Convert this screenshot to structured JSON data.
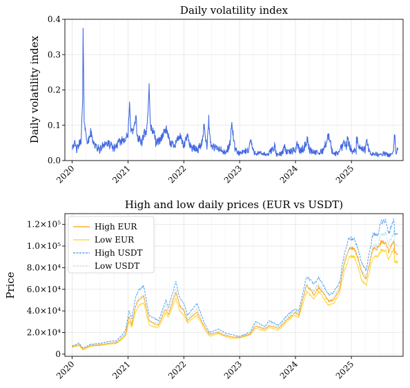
{
  "chart_data": [
    {
      "type": "line",
      "title": "Daily volatility index",
      "xlabel": "",
      "ylabel": "Daily volatility index",
      "x_ticks": [
        "2020",
        "2021",
        "2022",
        "2023",
        "2024",
        "2025"
      ],
      "y_ticks": [
        "0.0",
        "0.1",
        "0.2",
        "0.3",
        "0.4"
      ],
      "ylim": [
        0,
        0.4
      ],
      "xlim": [
        "2019-11-15",
        "2025-12-05"
      ],
      "grid": true,
      "colors": {
        "line": "#4169e1"
      },
      "series": [
        {
          "name": "",
          "x": [
            "2020-01-01",
            "2020-01-15",
            "2020-02-01",
            "2020-02-15",
            "2020-03-01",
            "2020-03-10",
            "2020-03-13",
            "2020-03-20",
            "2020-04-01",
            "2020-04-15",
            "2020-05-01",
            "2020-05-15",
            "2020-06-01",
            "2020-07-01",
            "2020-08-01",
            "2020-09-01",
            "2020-10-01",
            "2020-11-01",
            "2020-12-01",
            "2021-01-01",
            "2021-01-11",
            "2021-01-20",
            "2021-02-01",
            "2021-02-23",
            "2021-03-01",
            "2021-04-01",
            "2021-04-18",
            "2021-05-01",
            "2021-05-12",
            "2021-05-19",
            "2021-05-25",
            "2021-06-01",
            "2021-06-22",
            "2021-07-01",
            "2021-08-01",
            "2021-09-07",
            "2021-10-01",
            "2021-11-01",
            "2021-12-04",
            "2022-01-01",
            "2022-01-24",
            "2022-02-15",
            "2022-03-01",
            "2022-04-01",
            "2022-05-01",
            "2022-05-12",
            "2022-06-01",
            "2022-06-13",
            "2022-06-18",
            "2022-07-01",
            "2022-08-01",
            "2022-09-01",
            "2022-10-01",
            "2022-11-01",
            "2022-11-09",
            "2022-12-01",
            "2023-01-01",
            "2023-02-01",
            "2023-03-01",
            "2023-03-13",
            "2023-04-01",
            "2023-05-01",
            "2023-06-01",
            "2023-07-01",
            "2023-08-17",
            "2023-09-01",
            "2023-10-01",
            "2023-10-23",
            "2023-11-01",
            "2023-12-01",
            "2024-01-01",
            "2024-01-11",
            "2024-02-01",
            "2024-03-01",
            "2024-03-19",
            "2024-04-01",
            "2024-05-01",
            "2024-06-01",
            "2024-07-01",
            "2024-08-05",
            "2024-09-01",
            "2024-10-01",
            "2024-11-01",
            "2024-11-12",
            "2024-12-01",
            "2024-12-05",
            "2025-01-01",
            "2025-02-01",
            "2025-02-03",
            "2025-03-01",
            "2025-04-01",
            "2025-04-07",
            "2025-05-01",
            "2025-06-01",
            "2025-07-01",
            "2025-08-01",
            "2025-09-01",
            "2025-10-01",
            "2025-10-11",
            "2025-10-20",
            "2025-11-01"
          ],
          "values": [
            0.04,
            0.05,
            0.03,
            0.045,
            0.06,
            0.17,
            0.37,
            0.12,
            0.07,
            0.05,
            0.08,
            0.06,
            0.04,
            0.03,
            0.05,
            0.045,
            0.035,
            0.05,
            0.06,
            0.07,
            0.16,
            0.09,
            0.08,
            0.12,
            0.07,
            0.05,
            0.08,
            0.07,
            0.14,
            0.22,
            0.12,
            0.09,
            0.08,
            0.05,
            0.06,
            0.09,
            0.05,
            0.045,
            0.07,
            0.04,
            0.07,
            0.04,
            0.035,
            0.03,
            0.05,
            0.1,
            0.04,
            0.12,
            0.07,
            0.04,
            0.035,
            0.03,
            0.02,
            0.05,
            0.11,
            0.03,
            0.02,
            0.025,
            0.03,
            0.06,
            0.025,
            0.02,
            0.02,
            0.015,
            0.04,
            0.015,
            0.02,
            0.04,
            0.025,
            0.025,
            0.03,
            0.05,
            0.025,
            0.04,
            0.06,
            0.03,
            0.025,
            0.02,
            0.03,
            0.07,
            0.02,
            0.02,
            0.04,
            0.055,
            0.04,
            0.06,
            0.03,
            0.025,
            0.06,
            0.03,
            0.03,
            0.06,
            0.02,
            0.02,
            0.015,
            0.02,
            0.015,
            0.02,
            0.075,
            0.02,
            0.035
          ]
        }
      ]
    },
    {
      "type": "line",
      "title": "High and low daily prices (EUR vs USDT)",
      "xlabel": "",
      "ylabel": "Price",
      "x_ticks": [
        "2020",
        "2021",
        "2022",
        "2023",
        "2024",
        "2025"
      ],
      "y_ticks": [
        "0",
        "2.0×10⁴",
        "4.0×10⁴",
        "6.0×10⁴",
        "8.0×10⁴",
        "1.0×10⁵",
        "1.2×10⁵"
      ],
      "ylim": [
        -2000,
        130000
      ],
      "xlim": [
        "2019-11-15",
        "2025-12-05"
      ],
      "grid": true,
      "legend": "top-left",
      "x": [
        "2020-01-01",
        "2020-02-15",
        "2020-03-13",
        "2020-05-01",
        "2020-07-01",
        "2020-09-01",
        "2020-10-15",
        "2020-11-15",
        "2020-12-15",
        "2021-01-08",
        "2021-01-25",
        "2021-02-21",
        "2021-03-13",
        "2021-04-14",
        "2021-05-19",
        "2021-06-22",
        "2021-07-20",
        "2021-09-06",
        "2021-09-21",
        "2021-11-10",
        "2021-12-04",
        "2022-01-01",
        "2022-01-24",
        "2022-03-28",
        "2022-05-12",
        "2022-06-18",
        "2022-08-15",
        "2022-10-01",
        "2022-11-09",
        "2022-12-31",
        "2023-03-10",
        "2023-04-14",
        "2023-06-15",
        "2023-07-14",
        "2023-09-11",
        "2023-11-15",
        "2023-12-31",
        "2024-01-23",
        "2024-03-14",
        "2024-05-01",
        "2024-06-01",
        "2024-08-05",
        "2024-09-06",
        "2024-10-15",
        "2024-11-13",
        "2024-12-17",
        "2025-01-20",
        "2025-02-15",
        "2025-03-10",
        "2025-04-08",
        "2025-05-22",
        "2025-06-22",
        "2025-07-14",
        "2025-08-14",
        "2025-09-01",
        "2025-10-06",
        "2025-10-11",
        "2025-10-31"
      ],
      "series": [
        {
          "name": "High EUR",
          "color": "#ff9f0a",
          "style": "solid",
          "values": [
            6800,
            8800,
            4800,
            8000,
            8500,
            10000,
            10500,
            14000,
            18000,
            35000,
            27000,
            45000,
            50000,
            53000,
            31000,
            28000,
            27000,
            42000,
            36000,
            57000,
            45000,
            40000,
            31000,
            39000,
            26000,
            18500,
            20000,
            17000,
            16000,
            15500,
            18500,
            26000,
            23000,
            26500,
            24000,
            33000,
            38500,
            36000,
            64000,
            55000,
            62000,
            49000,
            50000,
            60000,
            82000,
            98000,
            98000,
            88000,
            75000,
            70000,
            98000,
            98000,
            104000,
            103000,
            95000,
            106000,
            95000,
            92000
          ]
        },
        {
          "name": "Low EUR",
          "color": "#ffd21a",
          "style": "solid",
          "values": [
            6200,
            8000,
            3600,
            7300,
            8000,
            9200,
            9800,
            13000,
            16500,
            30000,
            25000,
            40000,
            45000,
            47000,
            27000,
            25000,
            25000,
            38000,
            34000,
            52000,
            40000,
            36000,
            29000,
            36000,
            24000,
            16500,
            19000,
            16000,
            14500,
            15000,
            17500,
            24000,
            21500,
            25000,
            22000,
            31500,
            36000,
            34000,
            58000,
            51000,
            58000,
            45000,
            47000,
            56000,
            75000,
            90000,
            90000,
            80000,
            68000,
            64000,
            90000,
            90000,
            96000,
            96000,
            88000,
            98000,
            86000,
            85000
          ]
        },
        {
          "name": "High USDT",
          "color": "#3d95e8",
          "style": "dashed",
          "values": [
            7500,
            10300,
            5500,
            9300,
            9900,
            11800,
            12300,
            16500,
            21500,
            40000,
            33000,
            53000,
            59000,
            63000,
            36000,
            33000,
            31000,
            50000,
            43000,
            67000,
            52000,
            47000,
            36000,
            47000,
            30000,
            20000,
            23000,
            19500,
            18000,
            16500,
            20000,
            30000,
            25500,
            31000,
            26500,
            37000,
            42000,
            40000,
            72000,
            65000,
            71000,
            55000,
            57000,
            66000,
            92000,
            107000,
            106000,
            96000,
            84000,
            78000,
            111000,
            110000,
            122000,
            124000,
            111000,
            126000,
            112000,
            110000
          ]
        },
        {
          "name": "Low USDT",
          "color": "#b8dce6",
          "style": "dashed",
          "values": [
            6900,
            9200,
            4500,
            8600,
            9300,
            11000,
            11500,
            15500,
            19500,
            34000,
            29000,
            46000,
            52000,
            55000,
            31000,
            29000,
            29000,
            46000,
            40000,
            60000,
            46000,
            41000,
            33000,
            42000,
            27000,
            17500,
            21000,
            18500,
            16000,
            16000,
            19000,
            28000,
            24000,
            29000,
            25000,
            35000,
            40000,
            38000,
            64000,
            58000,
            65000,
            49000,
            53000,
            61000,
            85000,
            98000,
            97000,
            87000,
            77000,
            72000,
            101000,
            100000,
            110000,
            112000,
            102000,
            113000,
            102000,
            100000
          ]
        }
      ]
    }
  ]
}
